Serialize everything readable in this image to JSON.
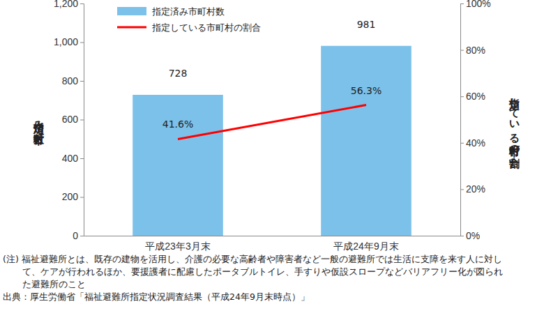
{
  "chart_data": {
    "type": "bar",
    "categories": [
      "平成23年3月末",
      "平成24年9月末"
    ],
    "series": [
      {
        "name": "指定済み市町村数",
        "type": "bar",
        "color": "#7cc1ea",
        "values": [
          728,
          981
        ],
        "data_labels": true
      },
      {
        "name": "指定している市町村の割合",
        "type": "line",
        "color": "#ff0000",
        "axis": "y2",
        "values": [
          41.6,
          56.3
        ],
        "value_labels": [
          "41.6%",
          "56.3%"
        ],
        "data_labels": true
      }
    ],
    "y_label": "指定済み市町村数",
    "y2_label": "指定している市町村の割合",
    "ylim": [
      0,
      1200
    ],
    "yticks": [
      0,
      200,
      400,
      600,
      800,
      {
        "value": 1000,
        "label": "1,000"
      },
      {
        "value": 1200,
        "label": "1,200"
      }
    ],
    "y2lim": [
      0,
      100
    ],
    "y2ticks": [
      {
        "value": 0,
        "label": "0%"
      },
      {
        "value": 20,
        "label": "20%"
      },
      {
        "value": 40,
        "label": "40%"
      },
      {
        "value": 60,
        "label": "60%"
      },
      {
        "value": 80,
        "label": "80%"
      },
      {
        "value": 100,
        "label": "100%"
      }
    ],
    "grid": false,
    "legend": "upper left",
    "notes": [
      "(注) 福祉避難所とは、既存の建物を活用し、介護の必要な高齢者や障害者など一般の避難所では生活に支障を来す人に対し",
      "て、ケアが行われるほか、要援護者に配慮したポータブルトイレ、手すりや仮設スロープなどバリアフリー化が図られ",
      "た避難所のこと"
    ],
    "source": "出典：厚生労働省「福祉避難所指定状況調査結果（平成24年9月末時点）」"
  }
}
